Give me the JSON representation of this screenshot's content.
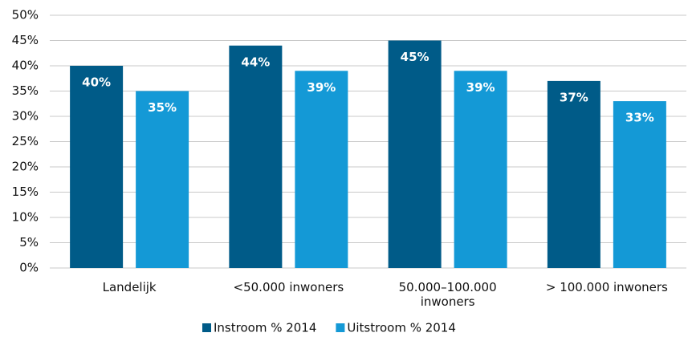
{
  "chart_data": {
    "type": "bar",
    "categories": [
      "Landelijk",
      "<50.000 inwoners",
      "50.000–100.000 inwoners",
      "> 100.000 inwoners"
    ],
    "series": [
      {
        "name": "Instroom % 2014",
        "color": "#005b88",
        "values": [
          40,
          44,
          45,
          37
        ],
        "value_labels": [
          "40%",
          "44%",
          "45%",
          "37%"
        ]
      },
      {
        "name": "Uitstroom % 2014",
        "color": "#1499d6",
        "values": [
          35,
          39,
          39,
          33
        ],
        "value_labels": [
          "35%",
          "39%",
          "39%",
          "33%"
        ]
      }
    ],
    "ylim": [
      0,
      50
    ],
    "yticks": [
      {
        "value": 0,
        "label": "0%"
      },
      {
        "value": 5,
        "label": "5%"
      },
      {
        "value": 10,
        "label": "10%"
      },
      {
        "value": 15,
        "label": "15%"
      },
      {
        "value": 20,
        "label": "20%"
      },
      {
        "value": 25,
        "label": "25%"
      },
      {
        "value": 30,
        "label": "30%"
      },
      {
        "value": 35,
        "label": "35%"
      },
      {
        "value": 40,
        "label": "40%"
      },
      {
        "value": 45,
        "label": "45%"
      },
      {
        "value": 50,
        "label": "50%"
      }
    ],
    "grid": true,
    "legend": "bottom"
  }
}
